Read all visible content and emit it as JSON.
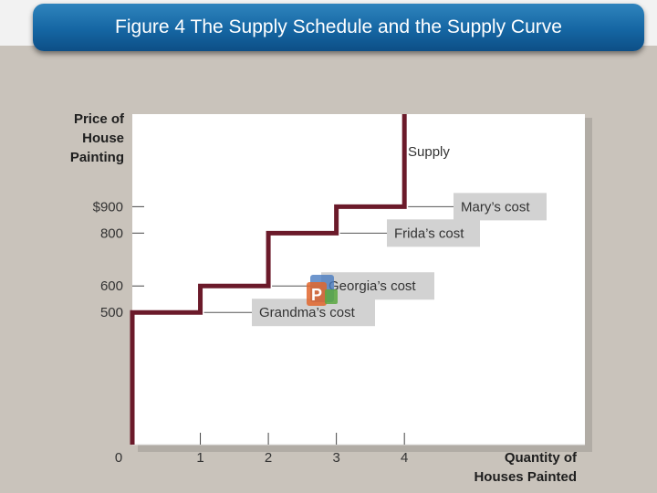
{
  "title": "Figure 4 The Supply Schedule and the Supply Curve",
  "icon": "presentation-app-icon",
  "colors": {
    "title_bar": "#1566a3",
    "supply_line": "#6b1a2a",
    "label_box": "#cfcfcf",
    "background": "#c9c3bb"
  },
  "chart_data": {
    "type": "line",
    "step": true,
    "ylabel_lines": [
      "Price of",
      "House",
      "Painting"
    ],
    "xlabel_lines": [
      "Quantity of",
      "Houses Painted"
    ],
    "y_ticks": [
      {
        "value": 500,
        "label": "500"
      },
      {
        "value": 600,
        "label": "600"
      },
      {
        "value": 800,
        "label": "800"
      },
      {
        "value": 900,
        "label": "$900"
      }
    ],
    "x_ticks": [
      {
        "value": 0,
        "label": "0"
      },
      {
        "value": 1,
        "label": "1"
      },
      {
        "value": 2,
        "label": "2"
      },
      {
        "value": 3,
        "label": "3"
      },
      {
        "value": 4,
        "label": "4"
      }
    ],
    "xlim": [
      0,
      6.6
    ],
    "ylim": [
      0,
      1250
    ],
    "grid": false,
    "series": [
      {
        "name": "Supply",
        "points": [
          [
            0,
            0
          ],
          [
            0,
            500
          ],
          [
            1,
            500
          ],
          [
            1,
            600
          ],
          [
            2,
            600
          ],
          [
            2,
            800
          ],
          [
            3,
            800
          ],
          [
            3,
            900
          ],
          [
            4,
            900
          ],
          [
            4,
            1250
          ]
        ]
      }
    ],
    "annotations": [
      {
        "text": "Mary’s cost",
        "y": 900
      },
      {
        "text": "Frida’s cost",
        "y": 800
      },
      {
        "text": "Georgia’s cost",
        "y": 600
      },
      {
        "text": "Grandma’s cost",
        "y": 500
      }
    ]
  }
}
